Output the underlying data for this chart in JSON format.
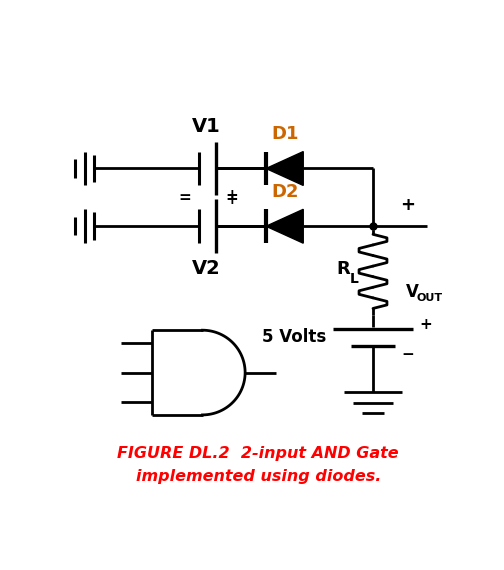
{
  "title_line1": "FIGURE DL.2  2-input AND Gate",
  "title_line2": "implemented using diodes.",
  "title_color": "#FF0000",
  "bg_color": "#FFFFFF",
  "line_color": "#000000",
  "lw": 2.0,
  "D1_label": "D1",
  "D2_label": "D2",
  "V1_label": "V1",
  "V2_label": "V2",
  "RL_label_R": "R",
  "RL_label_L": "L",
  "VOUT_label_V": "V",
  "VOUT_label_OUT": "OUT",
  "volts_label": "5 Volts",
  "plus": "+",
  "minus": "−"
}
